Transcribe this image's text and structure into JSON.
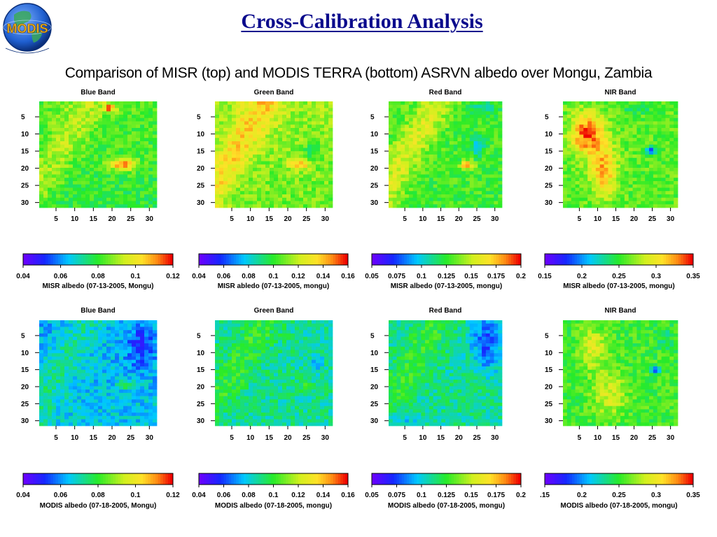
{
  "header": {
    "title": "Cross-Calibration Analysis",
    "subtitle": "Comparison of MISR (top) and MODIS TERRA (bottom) ASRVN albedo over Mongu, Zambia",
    "logo_text": "MODIS"
  },
  "colors": {
    "title": "#0a0a8c",
    "logo_globe": "#1f5fd0",
    "logo_text": "#e8b020"
  },
  "chart_data": [
    {
      "type": "heatmap",
      "title": "Blue Band",
      "row": "top",
      "band": "blue",
      "x_ticks": [
        5,
        10,
        15,
        20,
        25,
        30
      ],
      "y_ticks": [
        5,
        10,
        15,
        20,
        25,
        30
      ],
      "grid_size": [
        32,
        28
      ],
      "colorbar": {
        "ticks": [
          "0.04",
          "0.06",
          "0.08",
          "0.1",
          "0.12"
        ],
        "range": [
          0.04,
          0.12
        ],
        "label": "MISR albedo (07-13-2005, Mongu)"
      }
    },
    {
      "type": "heatmap",
      "title": "Green Band",
      "row": "top",
      "band": "green",
      "x_ticks": [
        5,
        10,
        15,
        20,
        25,
        30
      ],
      "y_ticks": [
        5,
        10,
        15,
        20,
        25,
        30
      ],
      "grid_size": [
        32,
        28
      ],
      "colorbar": {
        "ticks": [
          "0.04",
          "0.06",
          "0.08",
          "0.1",
          "0.12",
          "0.14",
          "0.16"
        ],
        "range": [
          0.04,
          0.16
        ],
        "label": "MISR abledo (07-13-2005, mongu)"
      }
    },
    {
      "type": "heatmap",
      "title": "Red Band",
      "row": "top",
      "band": "red",
      "x_ticks": [
        5,
        10,
        15,
        20,
        25,
        30
      ],
      "y_ticks": [
        5,
        10,
        15,
        20,
        25,
        30
      ],
      "grid_size": [
        32,
        28
      ],
      "colorbar": {
        "ticks": [
          "0.05",
          "0.075",
          "0.1",
          "0.125",
          "0.15",
          "0.175",
          "0.2"
        ],
        "range": [
          0.05,
          0.2
        ],
        "label": "MISR albedo (07-13-2005, mongu)"
      }
    },
    {
      "type": "heatmap",
      "title": "NIR Band",
      "row": "top",
      "band": "nir",
      "x_ticks": [
        5,
        10,
        15,
        20,
        25,
        30
      ],
      "y_ticks": [
        5,
        10,
        15,
        20,
        25,
        30
      ],
      "grid_size": [
        32,
        28
      ],
      "colorbar": {
        "ticks": [
          "0.15",
          "0.2",
          "0.25",
          "0.3",
          "0.35"
        ],
        "range": [
          0.15,
          0.35
        ],
        "label": "MISR albedo (07-13-2005, mongu)"
      }
    },
    {
      "type": "heatmap",
      "title": "Blue Band",
      "row": "bottom",
      "band": "blue",
      "x_ticks": [
        5,
        10,
        15,
        20,
        25,
        30
      ],
      "y_ticks": [
        5,
        10,
        15,
        20,
        25,
        30
      ],
      "grid_size": [
        32,
        28
      ],
      "colorbar": {
        "ticks": [
          "0.04",
          "0.06",
          "0.08",
          "0.1",
          "0.12"
        ],
        "range": [
          0.04,
          0.12
        ],
        "label": "MODIS albedo (07-18-2005, Mongu)"
      }
    },
    {
      "type": "heatmap",
      "title": "Green Band",
      "row": "bottom",
      "band": "green",
      "x_ticks": [
        5,
        10,
        15,
        20,
        25,
        30
      ],
      "y_ticks": [
        5,
        10,
        15,
        20,
        25,
        30
      ],
      "grid_size": [
        32,
        28
      ],
      "colorbar": {
        "ticks": [
          "0.04",
          "0.06",
          "0.08",
          "0.1",
          "0.12",
          "0.14",
          "0.16"
        ],
        "range": [
          0.04,
          0.16
        ],
        "label": "MODIS albedo (07-18-2005, mongu)"
      }
    },
    {
      "type": "heatmap",
      "title": "Red Band",
      "row": "bottom",
      "band": "red",
      "x_ticks": [
        5,
        10,
        15,
        20,
        25,
        30
      ],
      "y_ticks": [
        5,
        10,
        15,
        20,
        25,
        30
      ],
      "grid_size": [
        32,
        28
      ],
      "colorbar": {
        "ticks": [
          "0.05",
          "0.075",
          "0.1",
          "0.125",
          "0.15",
          "0.175",
          "0.2"
        ],
        "range": [
          0.05,
          0.2
        ],
        "label": "MODIS albedo (07-18-2005, mongu)"
      }
    },
    {
      "type": "heatmap",
      "title": "NIR Band",
      "row": "bottom",
      "band": "nir",
      "x_ticks": [
        5,
        10,
        15,
        20,
        25,
        30
      ],
      "y_ticks": [
        5,
        10,
        15,
        20,
        25,
        30
      ],
      "grid_size": [
        32,
        28
      ],
      "colorbar": {
        "ticks": [
          ".15",
          "0.2",
          "0.25",
          "0.3",
          "0.35"
        ],
        "range": [
          0.15,
          0.35
        ],
        "label": "MODIS albedo (07-18-2005, mongu)"
      }
    }
  ]
}
